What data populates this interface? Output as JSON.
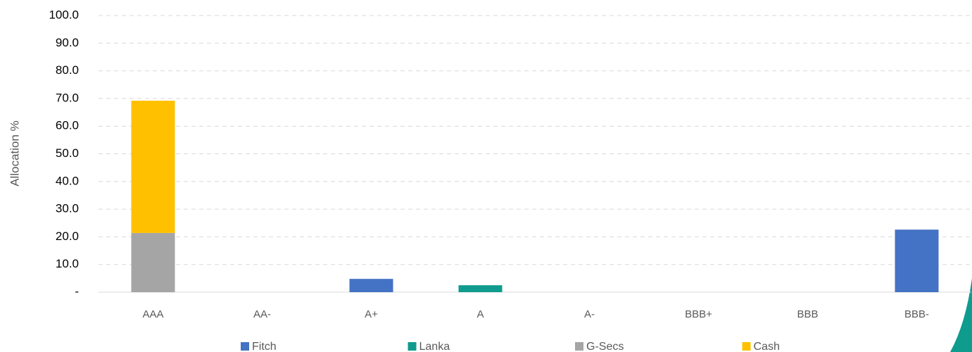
{
  "chart_data": {
    "type": "bar",
    "stacked": true,
    "y_axis_label": "Allocation %",
    "categories": [
      "AAA",
      "AA-",
      "A+",
      "A",
      "A-",
      "BBB+",
      "BBB",
      "BBB-"
    ],
    "series": [
      {
        "name": "Fitch",
        "color": "#4472c4",
        "values": [
          0,
          0,
          4.8,
          0,
          0,
          0,
          0,
          22.6
        ]
      },
      {
        "name": "Lanka",
        "color": "#0f9b8e",
        "values": [
          0,
          0,
          0,
          2.5,
          0,
          0,
          0,
          0
        ]
      },
      {
        "name": "G-Secs",
        "color": "#a5a5a5",
        "values": [
          21.4,
          0,
          0,
          0,
          0,
          0,
          0,
          0
        ]
      },
      {
        "name": "Cash",
        "color": "#ffc000",
        "values": [
          47.8,
          0,
          0,
          0,
          0,
          0,
          0,
          0
        ]
      }
    ],
    "ylim": [
      0,
      100
    ],
    "yticks": [
      {
        "value": 0,
        "label": "-"
      },
      {
        "value": 10,
        "label": "10.0"
      },
      {
        "value": 20,
        "label": "20.0"
      },
      {
        "value": 30,
        "label": "30.0"
      },
      {
        "value": 40,
        "label": "40.0"
      },
      {
        "value": 50,
        "label": "50.0"
      },
      {
        "value": 60,
        "label": "60.0"
      },
      {
        "value": 70,
        "label": "70.0"
      },
      {
        "value": 80,
        "label": "80.0"
      },
      {
        "value": 90,
        "label": "90.0"
      },
      {
        "value": 100,
        "label": "100.0"
      }
    ],
    "grid": true,
    "legend": "bottom"
  }
}
